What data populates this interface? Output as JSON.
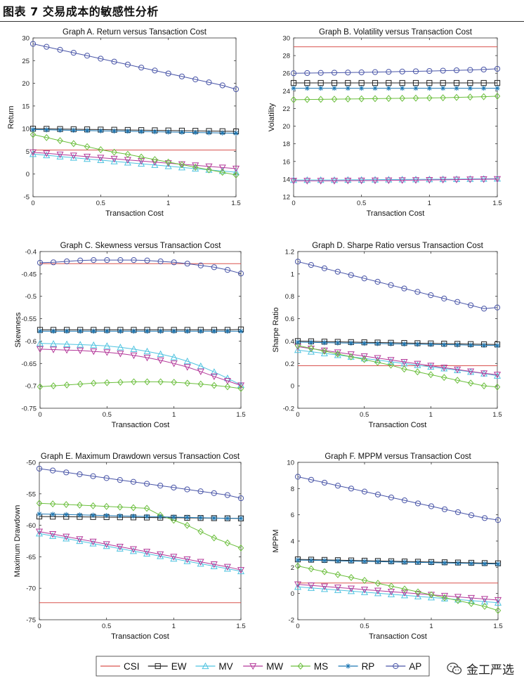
{
  "page": {
    "title": "图表 7 交易成本的敏感性分析"
  },
  "watermark": {
    "text": "金工严选",
    "icon": "wechat-icon"
  },
  "chart_data": {
    "type": "line",
    "x": [
      0,
      0.1,
      0.2,
      0.3,
      0.4,
      0.5,
      0.6,
      0.7,
      0.8,
      0.9,
      1.0,
      1.1,
      1.2,
      1.3,
      1.4,
      1.5
    ],
    "x_ticks": [
      0,
      0.5,
      1,
      1.5
    ],
    "xlabel": "Transaction Cost",
    "legend": [
      {
        "name": "CSI",
        "color": "#d9534f",
        "marker": "none"
      },
      {
        "name": "EW",
        "color": "#222222",
        "marker": "square"
      },
      {
        "name": "MV",
        "color": "#4fc3e0",
        "marker": "triangle-up"
      },
      {
        "name": "MW",
        "color": "#b4399a",
        "marker": "triangle-down"
      },
      {
        "name": "MS",
        "color": "#6cbf3e",
        "marker": "diamond"
      },
      {
        "name": "RP",
        "color": "#1f78b4",
        "marker": "star"
      },
      {
        "name": "AP",
        "color": "#4a56a8",
        "marker": "circle"
      }
    ],
    "panels": [
      {
        "title": "Graph A. Return versus Tansaction Cost",
        "ylabel": "Return",
        "ylim": [
          -5,
          30
        ],
        "y_ticks": [
          -5,
          0,
          5,
          10,
          15,
          20,
          25,
          30
        ],
        "series": {
          "CSI": [
            5.3,
            5.3,
            5.3,
            5.3,
            5.3,
            5.3,
            5.3,
            5.3,
            5.3,
            5.3,
            5.3,
            5.3,
            5.3,
            5.3,
            5.3,
            5.3
          ],
          "EW": [
            10.0,
            9.96,
            9.92,
            9.88,
            9.84,
            9.8,
            9.76,
            9.72,
            9.68,
            9.64,
            9.6,
            9.56,
            9.52,
            9.48,
            9.44,
            9.4
          ],
          "MV": [
            4.4,
            4.13,
            3.87,
            3.6,
            3.33,
            3.07,
            2.8,
            2.53,
            2.27,
            2.0,
            1.73,
            1.47,
            1.2,
            0.93,
            0.67,
            0.4
          ],
          "MW": [
            4.8,
            4.56,
            4.32,
            4.08,
            3.84,
            3.6,
            3.36,
            3.12,
            2.88,
            2.64,
            2.4,
            2.16,
            1.92,
            1.68,
            1.44,
            1.2
          ],
          "MS": [
            8.7,
            8.04,
            7.37,
            6.71,
            6.04,
            5.38,
            4.82,
            4.36,
            3.75,
            3.19,
            2.63,
            2.07,
            1.5,
            0.94,
            0.38,
            -0.2
          ],
          "RP": [
            9.8,
            9.75,
            9.69,
            9.64,
            9.59,
            9.53,
            9.48,
            9.43,
            9.37,
            9.32,
            9.27,
            9.21,
            9.16,
            9.11,
            9.05,
            9.0
          ],
          "AP": [
            28.7,
            28.05,
            27.39,
            26.74,
            26.09,
            25.43,
            24.78,
            24.13,
            23.47,
            22.82,
            22.17,
            21.51,
            20.86,
            20.21,
            19.55,
            18.7
          ]
        }
      },
      {
        "title": "Graph B. Volatility versus Transaction Cost",
        "ylabel": "Volatility",
        "ylim": [
          12,
          30
        ],
        "y_ticks": [
          12,
          14,
          16,
          18,
          20,
          22,
          24,
          26,
          28,
          30
        ],
        "series": {
          "CSI": [
            29.0,
            29.0,
            29.0,
            29.0,
            29.0,
            29.0,
            29.0,
            29.0,
            29.0,
            29.0,
            29.0,
            29.0,
            29.0,
            29.0,
            29.0,
            29.0
          ],
          "EW": [
            24.9,
            24.9,
            24.9,
            24.9,
            24.9,
            24.9,
            24.9,
            24.9,
            24.9,
            24.9,
            24.9,
            24.9,
            24.9,
            24.9,
            24.9,
            24.9
          ],
          "MV": [
            13.9,
            13.9,
            13.9,
            13.9,
            13.92,
            13.92,
            13.94,
            13.95,
            13.96,
            13.97,
            13.98,
            13.99,
            14.0,
            14.02,
            14.03,
            14.05
          ],
          "MW": [
            13.8,
            13.8,
            13.8,
            13.8,
            13.82,
            13.83,
            13.84,
            13.85,
            13.87,
            13.88,
            13.9,
            13.92,
            13.94,
            13.96,
            13.98,
            14.0
          ],
          "MS": [
            23.0,
            23.02,
            23.04,
            23.06,
            23.08,
            23.1,
            23.12,
            23.14,
            23.16,
            23.18,
            23.2,
            23.22,
            23.26,
            23.3,
            23.34,
            23.4
          ],
          "RP": [
            24.3,
            24.3,
            24.3,
            24.3,
            24.3,
            24.3,
            24.3,
            24.3,
            24.3,
            24.3,
            24.3,
            24.3,
            24.3,
            24.3,
            24.3,
            24.3
          ],
          "AP": [
            26.0,
            26.02,
            26.04,
            26.06,
            26.08,
            26.1,
            26.13,
            26.16,
            26.19,
            26.22,
            26.25,
            26.29,
            26.33,
            26.37,
            26.42,
            26.5
          ]
        }
      },
      {
        "title": "Graph C. Skewness versus Transaction Cost",
        "ylabel": "Skewness",
        "ylim": [
          -0.75,
          -0.4
        ],
        "y_ticks": [
          -0.75,
          -0.7,
          -0.65,
          -0.6,
          -0.55,
          -0.5,
          -0.45,
          -0.4
        ],
        "series": {
          "CSI": [
            -0.427,
            -0.427,
            -0.427,
            -0.427,
            -0.427,
            -0.427,
            -0.427,
            -0.427,
            -0.427,
            -0.427,
            -0.427,
            -0.427,
            -0.427,
            -0.427,
            -0.427,
            -0.427
          ],
          "EW": [
            -0.575,
            -0.575,
            -0.575,
            -0.575,
            -0.575,
            -0.575,
            -0.575,
            -0.575,
            -0.575,
            -0.575,
            -0.575,
            -0.575,
            -0.575,
            -0.575,
            -0.575,
            -0.574
          ],
          "MV": [
            -0.605,
            -0.606,
            -0.607,
            -0.608,
            -0.609,
            -0.611,
            -0.614,
            -0.618,
            -0.623,
            -0.629,
            -0.636,
            -0.645,
            -0.656,
            -0.669,
            -0.683,
            -0.698
          ],
          "MW": [
            -0.618,
            -0.619,
            -0.62,
            -0.621,
            -0.623,
            -0.625,
            -0.628,
            -0.632,
            -0.637,
            -0.643,
            -0.65,
            -0.658,
            -0.668,
            -0.679,
            -0.689,
            -0.699
          ],
          "MS": [
            -0.702,
            -0.7,
            -0.698,
            -0.696,
            -0.694,
            -0.693,
            -0.692,
            -0.691,
            -0.691,
            -0.691,
            -0.692,
            -0.694,
            -0.696,
            -0.699,
            -0.702,
            -0.706
          ],
          "RP": [
            -0.578,
            -0.578,
            -0.578,
            -0.578,
            -0.578,
            -0.578,
            -0.578,
            -0.578,
            -0.578,
            -0.578,
            -0.578,
            -0.578,
            -0.578,
            -0.578,
            -0.578,
            -0.578
          ],
          "AP": [
            -0.425,
            -0.424,
            -0.422,
            -0.42,
            -0.419,
            -0.419,
            -0.419,
            -0.419,
            -0.42,
            -0.422,
            -0.424,
            -0.427,
            -0.431,
            -0.435,
            -0.441,
            -0.449
          ]
        }
      },
      {
        "title": "Graph D. Sharpe Ratio versus Transaction Cost",
        "ylabel": "Sharpe Ratio",
        "ylim": [
          -0.2,
          1.2
        ],
        "y_ticks": [
          -0.2,
          0,
          0.2,
          0.4,
          0.6,
          0.8,
          1,
          1.2
        ],
        "series": {
          "CSI": [
            0.18,
            0.18,
            0.18,
            0.18,
            0.18,
            0.18,
            0.18,
            0.18,
            0.18,
            0.18,
            0.18,
            0.18,
            0.18,
            0.18,
            0.18,
            0.18
          ],
          "EW": [
            0.4,
            0.398,
            0.395,
            0.393,
            0.391,
            0.389,
            0.387,
            0.385,
            0.383,
            0.381,
            0.379,
            0.377,
            0.375,
            0.373,
            0.371,
            0.37
          ],
          "MV": [
            0.32,
            0.305,
            0.29,
            0.275,
            0.26,
            0.245,
            0.23,
            0.215,
            0.2,
            0.185,
            0.17,
            0.155,
            0.14,
            0.125,
            0.11,
            0.09
          ],
          "MW": [
            0.35,
            0.333,
            0.316,
            0.299,
            0.282,
            0.265,
            0.248,
            0.231,
            0.214,
            0.197,
            0.18,
            0.163,
            0.146,
            0.129,
            0.112,
            0.1
          ],
          "MS": [
            0.36,
            0.335,
            0.31,
            0.285,
            0.26,
            0.235,
            0.21,
            0.185,
            0.15,
            0.125,
            0.1,
            0.075,
            0.05,
            0.025,
            0.0,
            -0.01
          ],
          "RP": [
            0.39,
            0.388,
            0.386,
            0.384,
            0.382,
            0.38,
            0.378,
            0.376,
            0.374,
            0.372,
            0.37,
            0.368,
            0.366,
            0.364,
            0.362,
            0.36
          ],
          "AP": [
            1.11,
            1.08,
            1.05,
            1.02,
            0.99,
            0.96,
            0.93,
            0.9,
            0.87,
            0.84,
            0.81,
            0.78,
            0.75,
            0.72,
            0.69,
            0.7
          ]
        }
      },
      {
        "title": "Graph E. Maximum Drawdown versus Transaction Cost",
        "ylabel": "Maximum Drawdown",
        "ylim": [
          -75,
          -50
        ],
        "y_ticks": [
          -75,
          -70,
          -65,
          -60,
          -55,
          -50
        ],
        "series": {
          "CSI": [
            -72.3,
            -72.3,
            -72.3,
            -72.3,
            -72.3,
            -72.3,
            -72.3,
            -72.3,
            -72.3,
            -72.3,
            -72.3,
            -72.3,
            -72.3,
            -72.3,
            -72.3,
            -72.3
          ],
          "EW": [
            -58.6,
            -58.62,
            -58.64,
            -58.66,
            -58.68,
            -58.7,
            -58.72,
            -58.74,
            -58.76,
            -58.78,
            -58.8,
            -58.82,
            -58.84,
            -58.86,
            -58.88,
            -58.9
          ],
          "MV": [
            -61.3,
            -61.7,
            -62.1,
            -62.5,
            -62.9,
            -63.3,
            -63.7,
            -64.1,
            -64.5,
            -64.9,
            -65.3,
            -65.7,
            -66.1,
            -66.5,
            -66.9,
            -67.3
          ],
          "MW": [
            -61.0,
            -61.4,
            -61.8,
            -62.2,
            -62.6,
            -63.0,
            -63.4,
            -63.8,
            -64.2,
            -64.6,
            -65.0,
            -65.4,
            -65.8,
            -66.2,
            -66.6,
            -67.1
          ],
          "MS": [
            -56.5,
            -56.6,
            -56.7,
            -56.8,
            -56.9,
            -57.0,
            -57.1,
            -57.2,
            -57.3,
            -58.4,
            -59.2,
            -60.0,
            -61.0,
            -62.0,
            -62.8,
            -63.6
          ],
          "RP": [
            -58.2,
            -58.25,
            -58.3,
            -58.35,
            -58.4,
            -58.45,
            -58.5,
            -58.55,
            -58.6,
            -58.65,
            -58.7,
            -58.75,
            -58.8,
            -58.85,
            -58.9,
            -58.9
          ],
          "AP": [
            -51.0,
            -51.3,
            -51.6,
            -51.9,
            -52.2,
            -52.5,
            -52.8,
            -53.1,
            -53.4,
            -53.7,
            -54.0,
            -54.3,
            -54.6,
            -54.9,
            -55.2,
            -55.7
          ]
        }
      },
      {
        "title": "Graph F. MPPM versus Transaction Cost",
        "ylabel": "MPPM",
        "ylim": [
          -2,
          10
        ],
        "y_ticks": [
          -2,
          0,
          2,
          4,
          6,
          8,
          10
        ],
        "series": {
          "CSI": [
            0.8,
            0.8,
            0.8,
            0.8,
            0.8,
            0.8,
            0.8,
            0.8,
            0.8,
            0.8,
            0.8,
            0.8,
            0.8,
            0.8,
            0.8,
            0.8
          ],
          "EW": [
            2.6,
            2.58,
            2.56,
            2.54,
            2.52,
            2.5,
            2.48,
            2.46,
            2.44,
            2.42,
            2.4,
            2.38,
            2.36,
            2.34,
            2.32,
            2.3
          ],
          "MV": [
            0.5,
            0.42,
            0.34,
            0.26,
            0.18,
            0.1,
            0.02,
            -0.06,
            -0.14,
            -0.22,
            -0.3,
            -0.38,
            -0.46,
            -0.54,
            -0.62,
            -0.7
          ],
          "MW": [
            0.7,
            0.62,
            0.54,
            0.46,
            0.38,
            0.3,
            0.22,
            0.14,
            0.06,
            -0.02,
            -0.1,
            -0.18,
            -0.26,
            -0.34,
            -0.42,
            -0.5
          ],
          "MS": [
            2.1,
            1.88,
            1.66,
            1.44,
            1.22,
            1.0,
            0.78,
            0.56,
            0.34,
            0.12,
            -0.1,
            -0.32,
            -0.54,
            -0.76,
            -0.98,
            -1.3
          ],
          "RP": [
            2.55,
            2.53,
            2.51,
            2.49,
            2.47,
            2.45,
            2.43,
            2.41,
            2.39,
            2.37,
            2.35,
            2.33,
            2.31,
            2.29,
            2.27,
            2.25
          ],
          "AP": [
            8.9,
            8.67,
            8.45,
            8.22,
            8.0,
            7.77,
            7.55,
            7.32,
            7.1,
            6.87,
            6.65,
            6.42,
            6.2,
            5.97,
            5.75,
            5.6
          ]
        }
      }
    ]
  }
}
